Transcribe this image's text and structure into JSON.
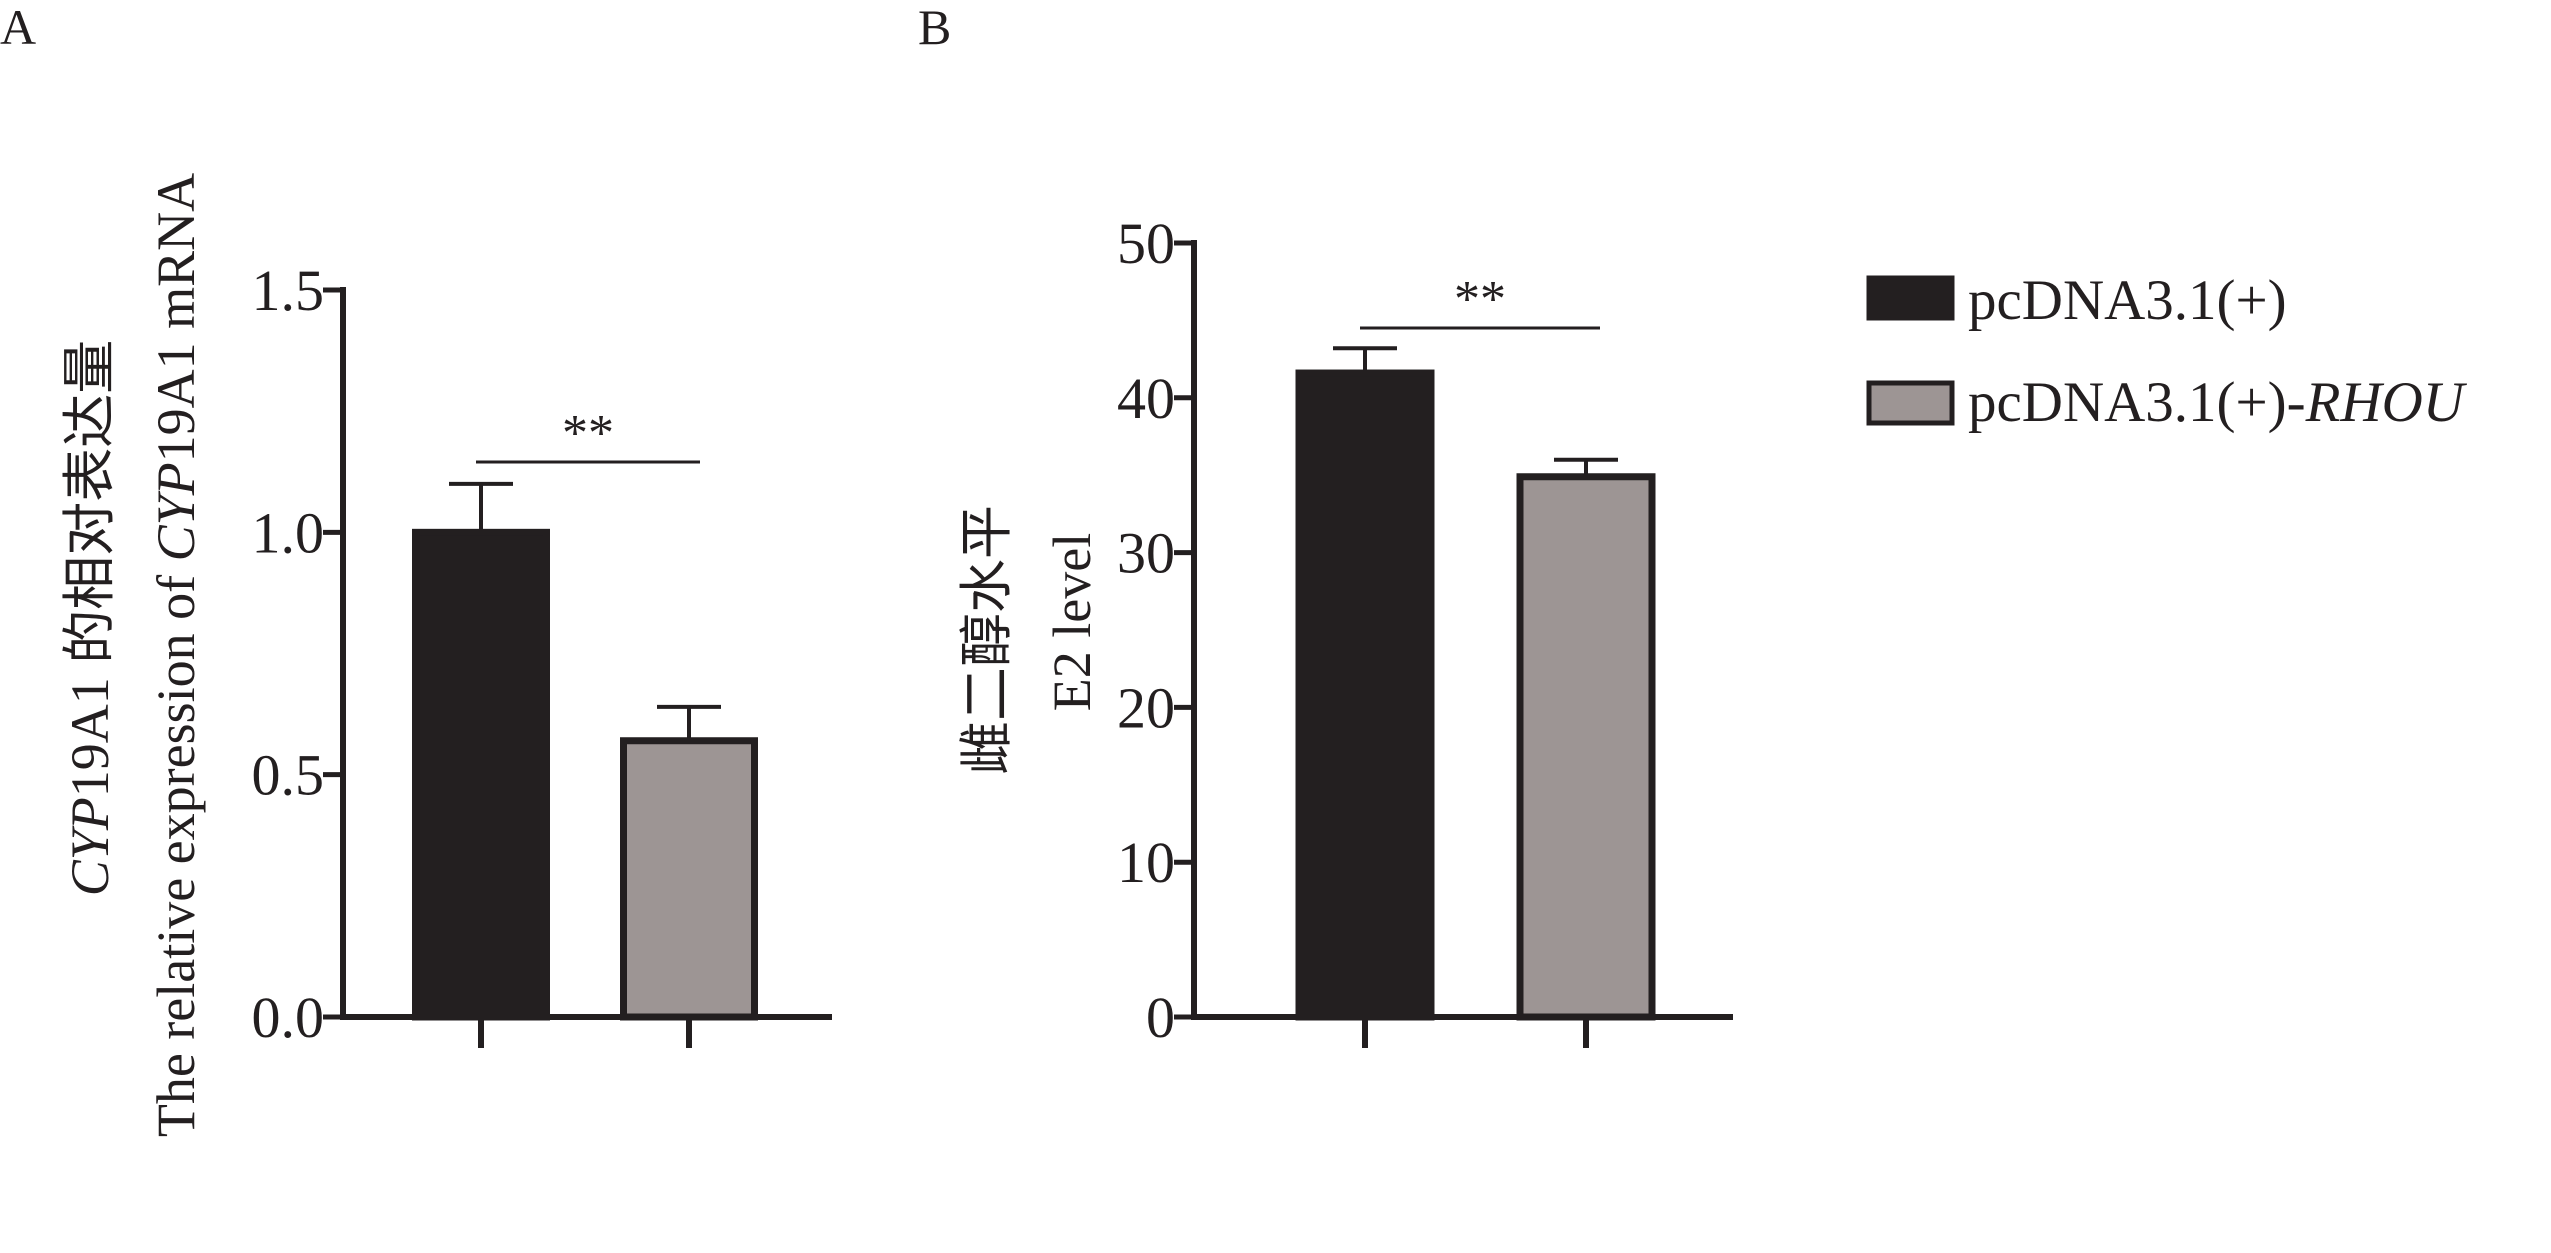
{
  "colors": {
    "control": "#231f20",
    "rhou": "#9d9594",
    "axis": "#231f20",
    "background": "#ffffff"
  },
  "legend": {
    "items": [
      {
        "label": "pcDNA3.1(+)",
        "label_suffix_italic": "",
        "color": "#231f20"
      },
      {
        "label": "pcDNA3.1(+)-",
        "label_suffix_italic": "RHOU",
        "color": "#9d9594"
      }
    ]
  },
  "chart_data": [
    {
      "panel_label": "A",
      "type": "bar",
      "ylabel_cn_italic": "CYP",
      "ylabel_cn_rest": "19A1 的相对表达量",
      "ylabel_en_start": "The relative expression of ",
      "ylabel_en_italic": "CYP",
      "ylabel_en_end": "19A1 mRNA",
      "ylim": [
        0,
        1.5
      ],
      "yticks": [
        0.0,
        0.5,
        1.0,
        1.5
      ],
      "ytick_labels": [
        "0.0",
        "0.5",
        "1.0",
        "1.5"
      ],
      "series": [
        {
          "name": "pcDNA3.1(+)",
          "value": 1.0,
          "error": 0.1
        },
        {
          "name": "pcDNA3.1(+)-RHOU",
          "value": 0.57,
          "error": 0.07
        }
      ],
      "significance": "**"
    },
    {
      "panel_label": "B",
      "type": "bar",
      "ylabel_cn": "雌二醇水平",
      "ylabel_en": "E2 level",
      "ylim": [
        0,
        50
      ],
      "yticks": [
        0,
        10,
        20,
        30,
        40,
        50
      ],
      "ytick_labels": [
        "0",
        "10",
        "20",
        "30",
        "40",
        "50"
      ],
      "series": [
        {
          "name": "pcDNA3.1(+)",
          "value": 41.6,
          "error": 1.6
        },
        {
          "name": "pcDNA3.1(+)-RHOU",
          "value": 34.9,
          "error": 1.1
        }
      ],
      "significance": "**"
    }
  ]
}
